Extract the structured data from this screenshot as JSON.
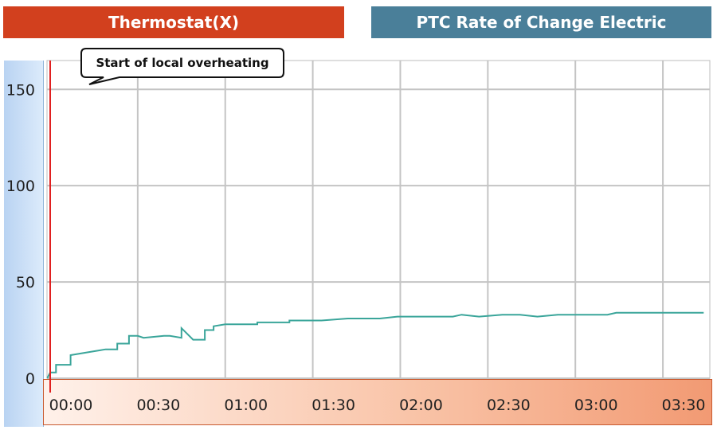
{
  "tabs": {
    "left_label": "Thermostat(X)",
    "right_label": "PTC Rate of Change Electric",
    "left_color": "#d2401e",
    "right_color": "#4a7f99"
  },
  "chart_data": {
    "type": "line",
    "title": "",
    "xlabel": "",
    "ylabel": "",
    "xlim": [
      0,
      225
    ],
    "ylim": [
      0,
      165
    ],
    "y_ticks": [
      "0",
      "50",
      "100",
      "150"
    ],
    "x_ticks": [
      "00:00",
      "00:30",
      "01:00",
      "01:30",
      "02:00",
      "02:30",
      "03:00",
      "03:30"
    ],
    "grid": true,
    "line_color": "#3aa59a",
    "marker_color": "#e02020",
    "annotation": {
      "text": "Start of local overheating",
      "x_minutes": 0
    },
    "series": [
      {
        "x": [
          -1,
          0,
          2,
          2,
          7,
          7,
          15,
          19,
          23,
          23,
          27,
          27,
          30,
          32,
          39,
          41,
          45,
          45,
          49,
          53,
          53,
          56,
          56,
          60,
          68,
          71,
          71,
          80,
          82,
          82,
          86,
          93,
          102,
          113,
          119,
          128,
          138,
          141,
          147,
          155,
          161,
          167,
          174,
          176,
          183,
          191,
          194,
          204,
          213,
          218,
          224
        ],
        "y": [
          0,
          3,
          3,
          7,
          7,
          12,
          14,
          15,
          15,
          18,
          18,
          22,
          22,
          21,
          22,
          22,
          21,
          26,
          20,
          20,
          25,
          25,
          27,
          28,
          28,
          28,
          29,
          29,
          29,
          30,
          30,
          30,
          31,
          31,
          32,
          32,
          32,
          33,
          32,
          33,
          33,
          32,
          33,
          33,
          33,
          33,
          34,
          34,
          34,
          34,
          34
        ]
      }
    ]
  }
}
